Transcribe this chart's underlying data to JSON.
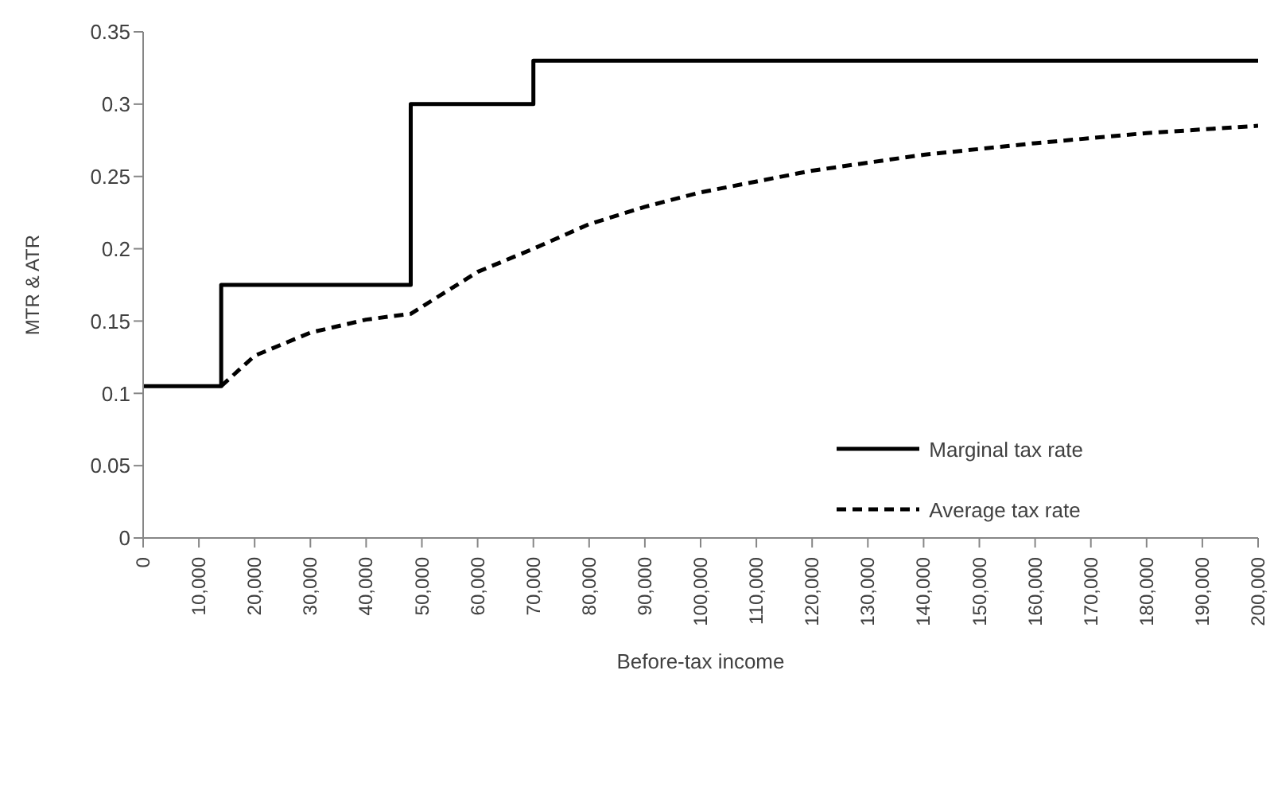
{
  "chart_data": {
    "type": "line",
    "xlabel": "Before-tax income",
    "ylabel": "MTR & ATR",
    "xlim": [
      0,
      200000
    ],
    "xticks": [
      0,
      {
        "value": 10000,
        "label": "10,000"
      },
      {
        "value": 20000,
        "label": "20,000"
      },
      {
        "value": 30000,
        "label": "30,000"
      },
      {
        "value": 40000,
        "label": "40,000"
      },
      {
        "value": 50000,
        "label": "50,000"
      },
      {
        "value": 60000,
        "label": "60,000"
      },
      {
        "value": 70000,
        "label": "70,000"
      },
      {
        "value": 80000,
        "label": "80,000"
      },
      {
        "value": 90000,
        "label": "90,000"
      },
      {
        "value": 100000,
        "label": "100,000"
      },
      {
        "value": 110000,
        "label": "110,000"
      },
      {
        "value": 120000,
        "label": "120,000"
      },
      {
        "value": 130000,
        "label": "130,000"
      },
      {
        "value": 140000,
        "label": "140,000"
      },
      {
        "value": 150000,
        "label": "150,000"
      },
      {
        "value": 160000,
        "label": "160,000"
      },
      {
        "value": 170000,
        "label": "170,000"
      },
      {
        "value": 180000,
        "label": "180,000"
      },
      {
        "value": 190000,
        "label": "190,000"
      },
      {
        "value": 200000,
        "label": "200,000"
      }
    ],
    "ylim": [
      0,
      0.35
    ],
    "yticks": [
      0,
      0.05,
      0.1,
      0.15,
      0.2,
      0.25,
      0.3,
      0.35
    ],
    "grid": false,
    "legend": "right",
    "marker": "none",
    "series": [
      {
        "name": "Marginal tax rate",
        "type": "step",
        "color": "#000000",
        "line_style": "solid",
        "x": [
          0,
          14000,
          48000,
          70000,
          200000
        ],
        "values": [
          0.105,
          0.175,
          0.3,
          0.33,
          0.33
        ]
      },
      {
        "name": "Average tax rate",
        "type": "line",
        "color": "#000000",
        "line_style": "dashed",
        "x": [
          14000,
          20000,
          30000,
          40000,
          48000,
          60000,
          70000,
          80000,
          90000,
          100000,
          120000,
          140000,
          160000,
          180000,
          200000
        ],
        "values": [
          0.105,
          0.126,
          0.142,
          0.151,
          0.155,
          0.184,
          0.2,
          0.217,
          0.229,
          0.239,
          0.254,
          0.265,
          0.273,
          0.28,
          0.285
        ]
      }
    ]
  }
}
